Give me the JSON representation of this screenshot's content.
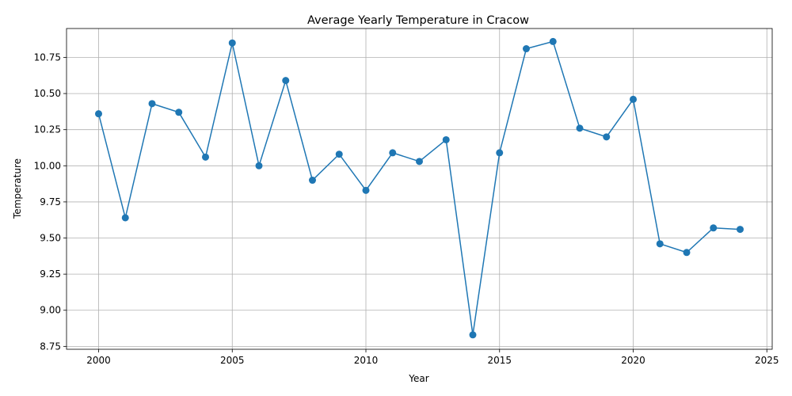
{
  "chart_data": {
    "type": "line",
    "title": "Average Yearly Temperature in Cracow",
    "xlabel": "Year",
    "ylabel": "Temperature",
    "xlim": [
      1998.8,
      2025.2
    ],
    "ylim": [
      8.73,
      10.95
    ],
    "xticks": [
      2000,
      2005,
      2010,
      2015,
      2020,
      2025
    ],
    "yticks": [
      8.75,
      9.0,
      9.25,
      9.5,
      9.75,
      10.0,
      10.25,
      10.5,
      10.75
    ],
    "ytick_labels": [
      "8.75",
      "9.00",
      "9.25",
      "9.50",
      "9.75",
      "10.00",
      "10.25",
      "10.50",
      "10.75"
    ],
    "grid": true,
    "color": "#1f77b4",
    "marker": "circle",
    "x": [
      2000,
      2001,
      2002,
      2003,
      2004,
      2005,
      2006,
      2007,
      2008,
      2009,
      2010,
      2011,
      2012,
      2013,
      2014,
      2015,
      2016,
      2017,
      2018,
      2019,
      2020,
      2021,
      2022,
      2023,
      2024
    ],
    "y": [
      10.36,
      9.64,
      10.43,
      10.37,
      10.06,
      10.85,
      10.0,
      10.59,
      9.9,
      10.08,
      9.83,
      10.09,
      10.03,
      10.18,
      8.83,
      10.09,
      10.81,
      10.86,
      10.26,
      10.2,
      10.46,
      9.46,
      9.4,
      9.57,
      9.56
    ]
  }
}
